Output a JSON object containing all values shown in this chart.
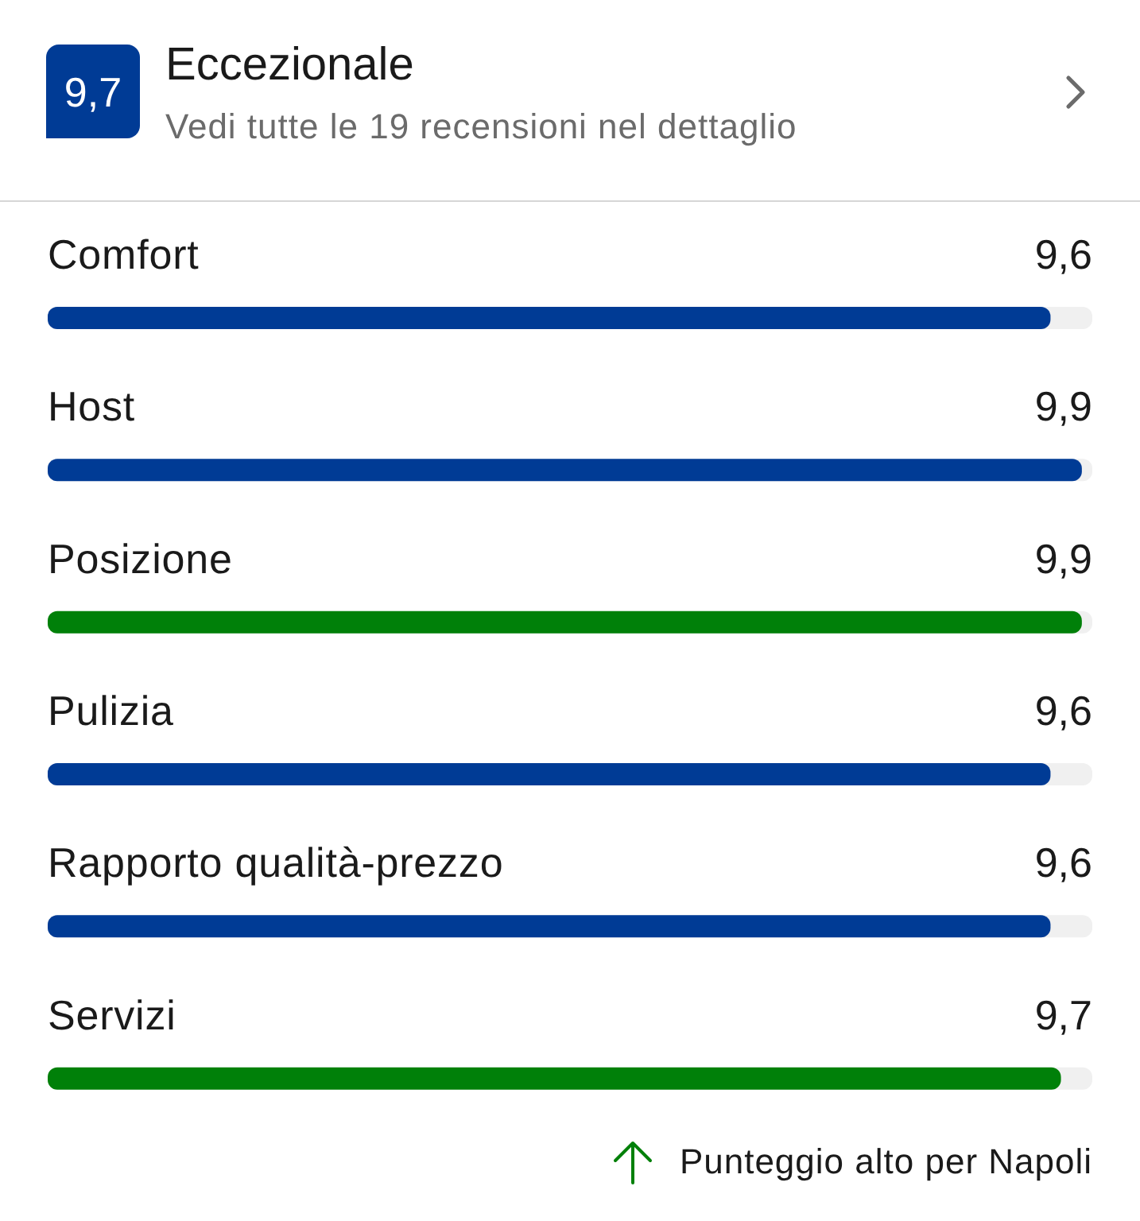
{
  "chart_data": {
    "type": "bar",
    "orientation": "horizontal",
    "title": "Eccezionale",
    "subtitle": "Vedi tutte le 19 recensioni nel dettaglio",
    "categories": [
      "Comfort",
      "Host",
      "Posizione",
      "Pulizia",
      "Rapporto qualità-prezzo",
      "Servizi"
    ],
    "values": [
      9.6,
      9.9,
      9.9,
      9.6,
      9.6,
      9.7
    ],
    "colors": [
      "#003b95",
      "#003b95",
      "#008009",
      "#003b95",
      "#003b95",
      "#008009"
    ],
    "value_labels": [
      "9,6",
      "9,9",
      "9,9",
      "9,6",
      "9,6",
      "9,7"
    ],
    "xlim": [
      0,
      10
    ],
    "tick_labels": "y",
    "annotations": [
      "9,7",
      "Punteggio alto per Napoli"
    ]
  }
}
